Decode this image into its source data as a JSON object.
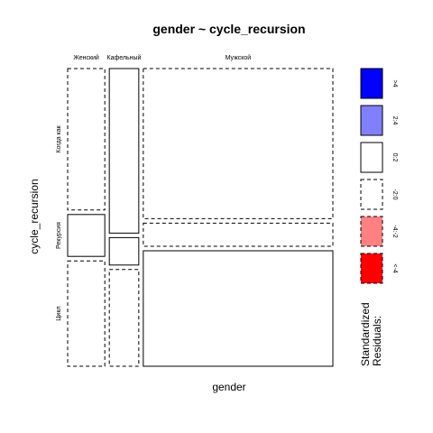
{
  "chart_data": {
    "type": "mosaic",
    "title": "gender ~ cycle_recursion",
    "xlabel": "gender",
    "ylabel": "cycle_recursion",
    "x_categories": [
      "Женский",
      "Кафельный",
      "Мужской"
    ],
    "y_categories": [
      "Когда как",
      "Рекурсия",
      "Цикл"
    ],
    "column_proportions": [
      0.145,
      0.115,
      0.74
    ],
    "cell_proportions": [
      [
        0.49,
        0.145,
        0.365
      ],
      [
        0.57,
        0.095,
        0.335
      ],
      [
        0.52,
        0.08,
        0.4
      ]
    ],
    "cell_residual_bins": [
      [
        "-2:0",
        "0:2",
        "-2:0"
      ],
      [
        "0:2",
        "0:2",
        "-2:0"
      ],
      [
        "-2:0",
        "-2:0",
        "0:2"
      ]
    ],
    "legend": {
      "title": "Standardized Residuals:",
      "placement": "right",
      "bins": [
        {
          "label": ">4",
          "color": "#0000ff",
          "dashed": false
        },
        {
          "label": "2:4",
          "color": "#8080ff",
          "dashed": false
        },
        {
          "label": "0:2",
          "color": "#ffffff",
          "dashed": false
        },
        {
          "label": "-2:0",
          "color": "#ffffff",
          "dashed": true
        },
        {
          "label": "-4:-2",
          "color": "#ff8080",
          "dashed": true
        },
        {
          "label": "<-4",
          "color": "#ff0000",
          "dashed": true
        }
      ]
    }
  }
}
